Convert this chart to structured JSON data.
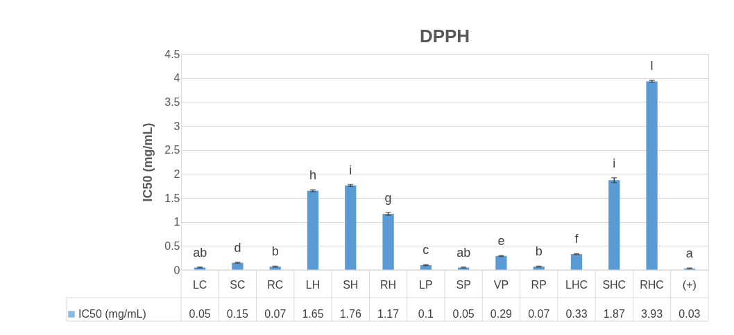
{
  "chart_data": {
    "type": "bar",
    "title": "DPPH",
    "ylabel": "IC50 (mg/mL)",
    "categories": [
      "LC",
      "SC",
      "RC",
      "LH",
      "SH",
      "RH",
      "LP",
      "SP",
      "VP",
      "RP",
      "LHC",
      "SHC",
      "RHC",
      "(+)"
    ],
    "series": [
      {
        "name": "IC50 (mg/mL)",
        "color": "#5b9bd5",
        "values": [
          0.05,
          0.15,
          0.07,
          1.65,
          1.76,
          1.17,
          0.1,
          0.05,
          0.29,
          0.07,
          0.33,
          1.87,
          3.93,
          0.03
        ],
        "errors": [
          0.01,
          0.01,
          0.01,
          0.02,
          0.02,
          0.03,
          0.01,
          0.01,
          0.01,
          0.01,
          0.01,
          0.05,
          0.02,
          0.01
        ]
      }
    ],
    "ylim": [
      0,
      4.5
    ],
    "yticks": [
      0,
      0.5,
      1,
      1.5,
      2,
      2.5,
      3,
      3.5,
      4,
      4.5
    ],
    "grid": "y",
    "legend": "bottom",
    "data_labels": true,
    "annotations": [
      {
        "text": "ab",
        "x": "LC",
        "y": 0.05
      },
      {
        "text": "d",
        "x": "SC",
        "y": 0.15
      },
      {
        "text": "b",
        "x": "RC",
        "y": 0.07
      },
      {
        "text": "h",
        "x": "LH",
        "y": 1.65
      },
      {
        "text": "i",
        "x": "SH",
        "y": 1.76
      },
      {
        "text": "g",
        "x": "RH",
        "y": 1.17
      },
      {
        "text": "c",
        "x": "LP",
        "y": 0.1
      },
      {
        "text": "ab",
        "x": "SP",
        "y": 0.05
      },
      {
        "text": "e",
        "x": "VP",
        "y": 0.29
      },
      {
        "text": "b",
        "x": "RP",
        "y": 0.07
      },
      {
        "text": "f",
        "x": "LHC",
        "y": 0.33
      },
      {
        "text": "i",
        "x": "SHC",
        "y": 1.87
      },
      {
        "text": "l",
        "x": "RHC",
        "y": 3.93
      },
      {
        "text": "a",
        "x": "(+)",
        "y": 0.03
      }
    ]
  }
}
